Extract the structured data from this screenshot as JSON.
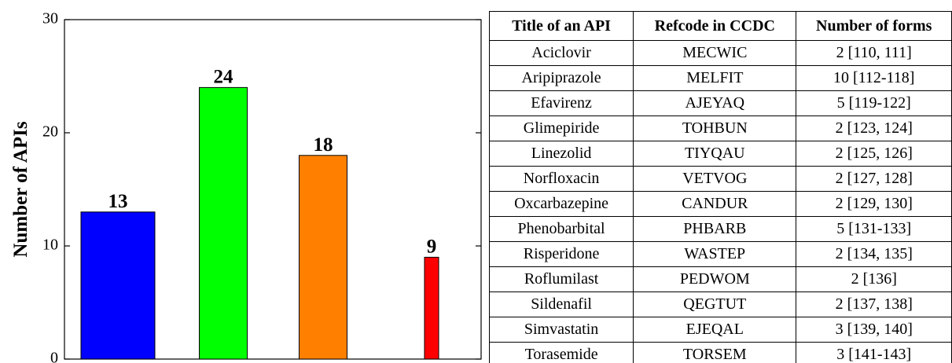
{
  "chart_data": {
    "type": "bar",
    "y_label": "Number of APIs",
    "categories": [
      null,
      null,
      null,
      null
    ],
    "series": [
      {
        "values": [
          13,
          24,
          18,
          9
        ],
        "colors": [
          "#0000ff",
          "#00ff00",
          "#ff8000",
          "#ff0000"
        ]
      }
    ],
    "ylim": [
      0,
      30
    ],
    "yticks": [
      0,
      10,
      20,
      30
    ],
    "grid": false
  },
  "table": {
    "header": [
      "Title of an API",
      "Refcode in CCDC",
      "Number of forms"
    ],
    "rows": [
      [
        "Aciclovir",
        "MECWIC",
        "2 [110, 111]"
      ],
      [
        "Aripiprazole",
        "MELFIT",
        "10 [112-118]"
      ],
      [
        "Efavirenz",
        "AJEYAQ",
        "5 [119-122]"
      ],
      [
        "Glimepiride",
        "TOHBUN",
        "2 [123, 124]"
      ],
      [
        "Linezolid",
        "TIYQAU",
        "2 [125, 126]"
      ],
      [
        "Norfloxacin",
        "VETVOG",
        "2 [127, 128]"
      ],
      [
        "Oxcarbazepine",
        "CANDUR",
        "2 [129, 130]"
      ],
      [
        "Phenobarbital",
        "PHBARB",
        "5 [131-133]"
      ],
      [
        "Risperidone",
        "WASTEP",
        "2 [134, 135]"
      ],
      [
        "Roflumilast",
        "PEDWOM",
        "2 [136]"
      ],
      [
        "Sildenafil",
        "QEGTUT",
        "2 [137, 138]"
      ],
      [
        "Simvastatin",
        "EJEQAL",
        "3 [139, 140]"
      ],
      [
        "Torasemide",
        "TORSEM",
        "3 [141-143]"
      ]
    ]
  }
}
